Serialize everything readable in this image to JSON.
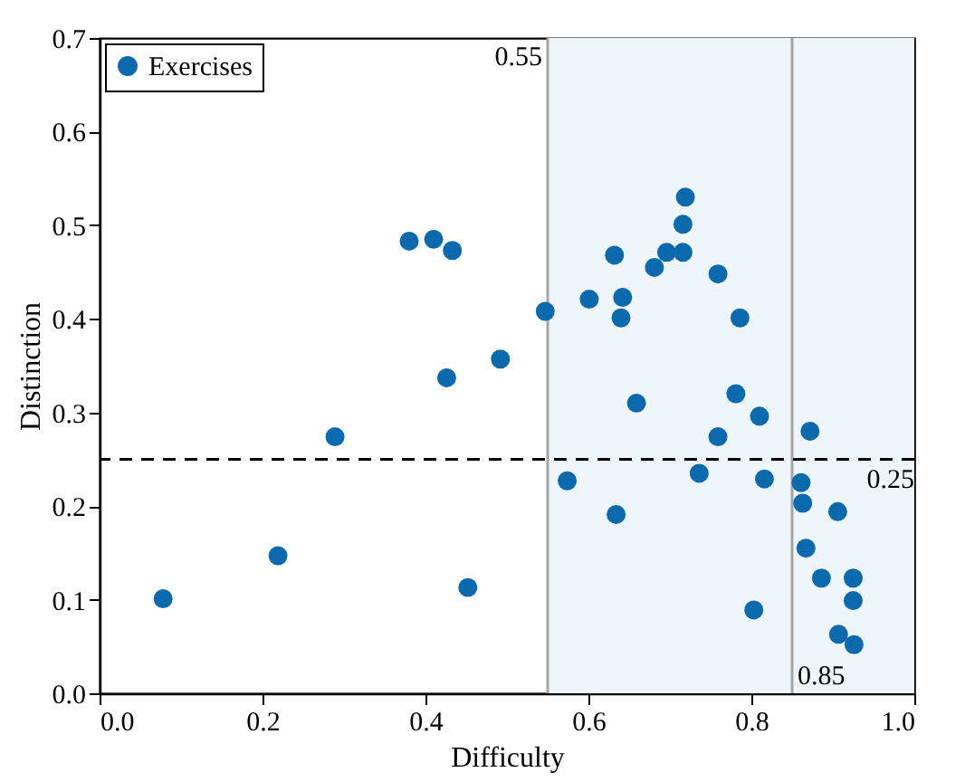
{
  "chart_data": {
    "type": "scatter",
    "xlabel": "Difficulty",
    "ylabel": "Distinction",
    "xlim": [
      0,
      1
    ],
    "ylim": [
      0,
      0.7
    ],
    "xticks": [
      {
        "value": 0,
        "label": "0.0"
      },
      {
        "value": 0.2,
        "label": "0.2"
      },
      {
        "value": 0.4,
        "label": "0.4"
      },
      {
        "value": 0.6,
        "label": "0.6"
      },
      {
        "value": 0.8,
        "label": "0.8"
      },
      {
        "value": 1,
        "label": "1.0"
      }
    ],
    "yticks": [
      {
        "value": 0,
        "label": "0.0"
      },
      {
        "value": 0.1,
        "label": "0.1"
      },
      {
        "value": 0.2,
        "label": "0.2"
      },
      {
        "value": 0.3,
        "label": "0.3"
      },
      {
        "value": 0.4,
        "label": "0.4"
      },
      {
        "value": 0.5,
        "label": "0.5"
      },
      {
        "value": 0.6,
        "label": "0.6"
      },
      {
        "value": 0.7,
        "label": "0.7"
      }
    ],
    "grid": false,
    "legend": "top left",
    "marker": "circle",
    "series": [
      {
        "name": "Exercises",
        "color": "#0a6aad",
        "x": [
          0.078,
          0.219,
          0.289,
          0.38,
          0.41,
          0.433,
          0.426,
          0.452,
          0.492,
          0.547,
          0.601,
          0.632,
          0.642,
          0.64,
          0.681,
          0.696,
          0.716,
          0.716,
          0.719,
          0.759,
          0.786,
          0.659,
          0.781,
          0.81,
          0.759,
          0.736,
          0.574,
          0.634,
          0.816,
          0.861,
          0.872,
          0.863,
          0.906,
          0.867,
          0.886,
          0.925,
          0.925,
          0.803,
          0.907,
          0.926
        ],
        "values": [
          0.101,
          0.147,
          0.274,
          0.483,
          0.485,
          0.473,
          0.337,
          0.113,
          0.357,
          0.408,
          0.421,
          0.468,
          0.423,
          0.401,
          0.455,
          0.471,
          0.471,
          0.501,
          0.53,
          0.448,
          0.401,
          0.31,
          0.32,
          0.296,
          0.274,
          0.235,
          0.227,
          0.191,
          0.229,
          0.225,
          0.28,
          0.203,
          0.194,
          0.155,
          0.123,
          0.123,
          0.099,
          0.089,
          0.063,
          0.052
        ]
      }
    ],
    "bands": [
      {
        "axis": "x",
        "from": 0.55,
        "to": 1,
        "color": "#eef6fc"
      }
    ],
    "ref_lines": [
      {
        "axis": "x",
        "value": 0.55,
        "label": "0.55",
        "color": "#a6a6a6",
        "line_style": "solid"
      },
      {
        "axis": "x",
        "value": 0.85,
        "label": "0.85",
        "color": "#a6a6a6",
        "line_style": "solid"
      },
      {
        "axis": "y",
        "value": 0.25,
        "label": "0.25",
        "color": "#000000",
        "line_style": "dashed"
      }
    ]
  }
}
